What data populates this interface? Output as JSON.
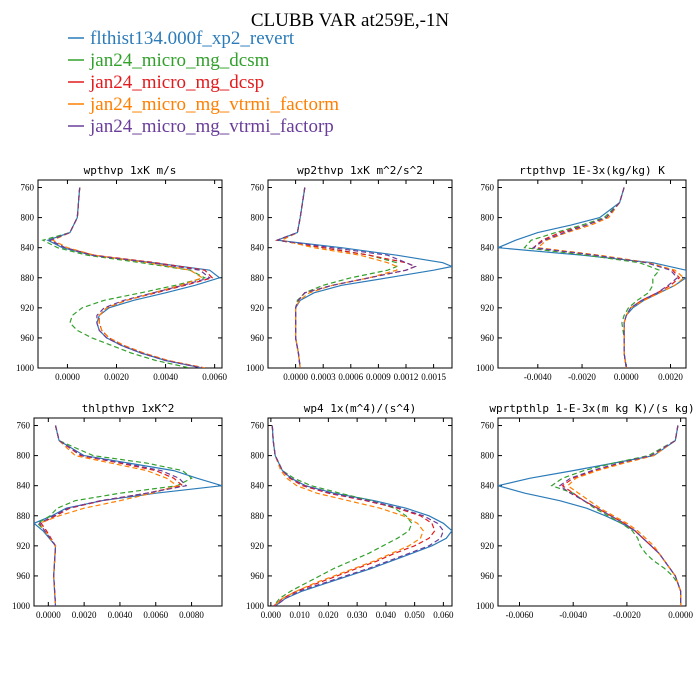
{
  "title": "CLUBB VAR at259E,-1N",
  "legend": [
    {
      "name": "flthist134.000f_xp2_revert",
      "color": "#2b7bb9",
      "dash": ""
    },
    {
      "name": "jan24_micro_mg_dcsm",
      "color": "#33a02c",
      "dash": "5,3"
    },
    {
      "name": "jan24_micro_mg_dcsp",
      "color": "#e31a1c",
      "dash": "5,3"
    },
    {
      "name": "jan24_micro_mg_vtrmi_factorm",
      "color": "#ff7f00",
      "dash": "5,3"
    },
    {
      "name": "jan24_micro_mg_vtrmi_factorp",
      "color": "#6a3d9a",
      "dash": "5,3"
    }
  ],
  "chart_data": [
    {
      "type": "line",
      "title": "wpthvp  1xK m/s",
      "ylim": [
        1000,
        750
      ],
      "yticks": [
        760,
        800,
        840,
        880,
        920,
        960,
        1000
      ],
      "xlim": [
        -0.0012,
        0.0063
      ],
      "xticks": [
        0,
        0.002,
        0.004,
        0.006
      ],
      "xticklabels": [
        "0.0000",
        "0.0020",
        "0.0040",
        "0.0060"
      ],
      "y": [
        760,
        800,
        820,
        830,
        840,
        850,
        860,
        870,
        880,
        890,
        900,
        910,
        920,
        930,
        940,
        950,
        960,
        970,
        980,
        990,
        1000
      ],
      "series": [
        {
          "values": [
            0.0005,
            0.0004,
            0.0001,
            -0.0008,
            -0.0002,
            0.001,
            0.0035,
            0.0058,
            0.0062,
            0.0052,
            0.004,
            0.0027,
            0.0017,
            0.0013,
            0.0012,
            0.0013,
            0.0016,
            0.0022,
            0.003,
            0.004,
            0.0055
          ]
        },
        {
          "values": [
            0.0005,
            0.0004,
            0.0001,
            -0.001,
            -0.0004,
            0.0008,
            0.003,
            0.005,
            0.0056,
            0.0044,
            0.003,
            0.0015,
            0.0006,
            0.0002,
            0.0001,
            0.0004,
            0.001,
            0.0018,
            0.0026,
            0.0036,
            0.005
          ]
        },
        {
          "values": [
            0.0005,
            0.0004,
            0.0001,
            -0.0007,
            -0.0001,
            0.0011,
            0.0036,
            0.0056,
            0.0059,
            0.0048,
            0.0036,
            0.0024,
            0.0016,
            0.0013,
            0.0013,
            0.0014,
            0.0017,
            0.0023,
            0.0031,
            0.0041,
            0.0056
          ]
        },
        {
          "values": [
            0.0005,
            0.0004,
            0.0001,
            -0.0006,
            0.0,
            0.0011,
            0.0033,
            0.005,
            0.0055,
            0.0046,
            0.0035,
            0.0024,
            0.0016,
            0.0013,
            0.0013,
            0.0014,
            0.0017,
            0.0023,
            0.0031,
            0.0041,
            0.0056
          ]
        },
        {
          "values": [
            0.0005,
            0.0004,
            0.0001,
            -0.0007,
            -0.0001,
            0.001,
            0.0034,
            0.0054,
            0.0058,
            0.0047,
            0.0035,
            0.0023,
            0.0015,
            0.0012,
            0.0012,
            0.0013,
            0.0016,
            0.0022,
            0.003,
            0.004,
            0.0055
          ]
        }
      ]
    },
    {
      "type": "line",
      "title": "wp2thvp  1xK m^2/s^2",
      "ylim": [
        1000,
        750
      ],
      "yticks": [
        760,
        800,
        840,
        880,
        920,
        960,
        1000
      ],
      "xlim": [
        -0.0003,
        0.0017
      ],
      "xticks": [
        0,
        0.0003,
        0.0006,
        0.0009,
        0.0012,
        0.0015
      ],
      "xticklabels": [
        "0.0000",
        "0.0003",
        "0.0006",
        "0.0009",
        "0.0012",
        "0.0015"
      ],
      "y": [
        760,
        800,
        820,
        830,
        840,
        850,
        860,
        865,
        870,
        880,
        890,
        900,
        910,
        920,
        940,
        960,
        980,
        1000
      ],
      "series": [
        {
          "values": [
            0.0001,
            5e-05,
            2e-05,
            -0.0002,
            0.0005,
            0.0011,
            0.0016,
            0.0017,
            0.0015,
            0.001,
            0.0005,
            0.0002,
            5e-05,
            0.0,
            0.0,
            0.0,
            3e-05,
            5e-05
          ]
        },
        {
          "values": [
            0.0001,
            5e-05,
            2e-05,
            -0.0002,
            0.0003,
            0.0008,
            0.0011,
            0.0011,
            0.001,
            0.0006,
            0.0003,
            0.0001,
            2e-05,
            0.0,
            0.0,
            0.0,
            3e-05,
            5e-05
          ]
        },
        {
          "values": [
            0.0001,
            5e-05,
            2e-05,
            -0.0002,
            0.0003,
            0.0008,
            0.0012,
            0.0013,
            0.0012,
            0.0008,
            0.0004,
            0.0001,
            3e-05,
            0.0,
            0.0,
            0.0,
            3e-05,
            5e-05
          ]
        },
        {
          "values": [
            0.0001,
            5e-05,
            2e-05,
            -0.00015,
            0.0002,
            0.0007,
            0.001,
            0.0011,
            0.0011,
            0.0008,
            0.0004,
            0.00015,
            4e-05,
            0.0,
            0.0,
            0.0,
            3e-05,
            5e-05
          ]
        },
        {
          "values": [
            0.0001,
            5e-05,
            2e-05,
            -0.0002,
            0.0004,
            0.001,
            0.0012,
            0.0013,
            0.0012,
            0.0008,
            0.0004,
            0.0001,
            3e-05,
            0.0,
            0.0,
            0.0,
            3e-05,
            5e-05
          ]
        }
      ]
    },
    {
      "type": "line",
      "title": "rtpthvp  1E-3x(kg/kg) K",
      "ylim": [
        1000,
        750
      ],
      "yticks": [
        760,
        800,
        840,
        880,
        920,
        960,
        1000
      ],
      "xlim": [
        -0.0058,
        0.0027
      ],
      "xticks": [
        -0.004,
        -0.002,
        0,
        0.002
      ],
      "xticklabels": [
        "-0.0040",
        "-0.0020",
        "0.0000",
        "0.0020"
      ],
      "y": [
        760,
        780,
        800,
        810,
        820,
        830,
        840,
        850,
        860,
        870,
        880,
        890,
        900,
        910,
        920,
        930,
        940,
        960,
        980,
        1000
      ],
      "series": [
        {
          "values": [
            -0.0001,
            -0.0003,
            -0.0012,
            -0.0025,
            -0.004,
            -0.005,
            -0.0058,
            -0.002,
            0.0012,
            0.0027,
            0.0027,
            0.0022,
            0.0015,
            0.0008,
            0.0003,
            0.0,
            -0.0001,
            -0.0001,
            -0.0001,
            0.0
          ]
        },
        {
          "values": [
            -0.0001,
            -0.0003,
            -0.001,
            -0.002,
            -0.0032,
            -0.0043,
            -0.0046,
            -0.0018,
            0.0006,
            0.0015,
            0.0012,
            0.0012,
            0.001,
            0.0005,
            0.0001,
            -0.0001,
            -0.0002,
            -0.0001,
            -0.0001,
            0.0
          ]
        },
        {
          "values": [
            -0.0001,
            -0.0003,
            -0.0009,
            -0.0018,
            -0.003,
            -0.0038,
            -0.0042,
            -0.0014,
            0.001,
            0.0021,
            0.0024,
            0.002,
            0.0014,
            0.0007,
            0.0002,
            0.0,
            -0.0001,
            -0.0001,
            -0.0001,
            0.0
          ]
        },
        {
          "values": [
            -0.0001,
            -0.0003,
            -0.0008,
            -0.0016,
            -0.0027,
            -0.0036,
            -0.004,
            -0.0012,
            0.001,
            0.0022,
            0.0026,
            0.0022,
            0.0015,
            0.0008,
            0.0002,
            0.0,
            -0.0001,
            -0.0001,
            -0.0001,
            0.0
          ]
        },
        {
          "values": [
            -0.0001,
            -0.0003,
            -0.0009,
            -0.0018,
            -0.0028,
            -0.0037,
            -0.0042,
            -0.0014,
            0.0009,
            0.002,
            0.0023,
            0.0019,
            0.0014,
            0.0007,
            0.0002,
            0.0,
            -0.0001,
            -0.0001,
            -0.0001,
            0.0
          ]
        }
      ]
    },
    {
      "type": "line",
      "title": "thlpthvp  1xK^2",
      "ylim": [
        1000,
        750
      ],
      "yticks": [
        760,
        800,
        840,
        880,
        920,
        960,
        1000
      ],
      "xlim": [
        -0.0008,
        0.0097
      ],
      "xticks": [
        0,
        0.002,
        0.004,
        0.006,
        0.008
      ],
      "xticklabels": [
        "0.0000",
        "0.0020",
        "0.0040",
        "0.0060",
        "0.0080"
      ],
      "y": [
        760,
        780,
        800,
        810,
        820,
        830,
        840,
        850,
        860,
        870,
        880,
        890,
        900,
        920,
        960,
        1000
      ],
      "series": [
        {
          "values": [
            0.0004,
            0.0006,
            0.002,
            0.0045,
            0.007,
            0.0083,
            0.0097,
            0.006,
            0.003,
            0.001,
            0.0002,
            -0.0008,
            -0.0003,
            0.0004,
            0.0003,
            0.0004
          ]
        },
        {
          "values": [
            0.0004,
            0.0006,
            0.0025,
            0.0055,
            0.0075,
            0.008,
            0.0072,
            0.004,
            0.0015,
            0.0005,
            0.0001,
            -0.0006,
            -0.0002,
            0.0004,
            0.0003,
            0.0004
          ]
        },
        {
          "values": [
            0.0004,
            0.0006,
            0.0018,
            0.004,
            0.006,
            0.007,
            0.0075,
            0.0055,
            0.003,
            0.0012,
            0.0004,
            -0.0004,
            -0.0001,
            0.0004,
            0.0003,
            0.0004
          ]
        },
        {
          "values": [
            0.0004,
            0.0006,
            0.0015,
            0.0035,
            0.0055,
            0.0066,
            0.0072,
            0.0058,
            0.004,
            0.002,
            0.0006,
            -0.0005,
            -0.0002,
            0.0004,
            0.0003,
            0.0004
          ]
        },
        {
          "values": [
            0.0004,
            0.0006,
            0.0019,
            0.0042,
            0.0063,
            0.0073,
            0.0077,
            0.0055,
            0.0029,
            0.0011,
            0.0003,
            -0.0005,
            -0.0002,
            0.0004,
            0.0003,
            0.0004
          ]
        }
      ]
    },
    {
      "type": "line",
      "title": "wp4  1x(m^4)/(s^4)",
      "ylim": [
        1000,
        750
      ],
      "yticks": [
        760,
        800,
        840,
        880,
        920,
        960,
        1000
      ],
      "xlim": [
        -0.001,
        0.063
      ],
      "xticks": [
        0,
        0.01,
        0.02,
        0.03,
        0.04,
        0.05,
        0.06
      ],
      "xticklabels": [
        "0.000",
        "0.010",
        "0.020",
        "0.030",
        "0.040",
        "0.050",
        "0.060"
      ],
      "y": [
        760,
        780,
        800,
        820,
        830,
        840,
        850,
        860,
        870,
        880,
        890,
        900,
        910,
        920,
        930,
        940,
        950,
        960,
        970,
        980,
        990,
        1000
      ],
      "series": [
        {
          "values": [
            0.0005,
            0.0008,
            0.0015,
            0.004,
            0.007,
            0.012,
            0.022,
            0.036,
            0.047,
            0.055,
            0.06,
            0.063,
            0.061,
            0.056,
            0.049,
            0.042,
            0.035,
            0.027,
            0.019,
            0.011,
            0.005,
            0.0015
          ]
        },
        {
          "values": [
            0.0005,
            0.0008,
            0.0015,
            0.004,
            0.008,
            0.014,
            0.024,
            0.035,
            0.043,
            0.047,
            0.049,
            0.048,
            0.044,
            0.039,
            0.034,
            0.028,
            0.022,
            0.017,
            0.012,
            0.007,
            0.003,
            0.001
          ]
        },
        {
          "values": [
            0.0005,
            0.0008,
            0.0015,
            0.004,
            0.0065,
            0.011,
            0.02,
            0.033,
            0.044,
            0.052,
            0.056,
            0.057,
            0.055,
            0.05,
            0.043,
            0.037,
            0.03,
            0.023,
            0.016,
            0.009,
            0.004,
            0.001
          ]
        },
        {
          "values": [
            0.0005,
            0.0008,
            0.0015,
            0.0035,
            0.0055,
            0.009,
            0.016,
            0.027,
            0.038,
            0.046,
            0.051,
            0.053,
            0.052,
            0.048,
            0.042,
            0.036,
            0.029,
            0.022,
            0.015,
            0.009,
            0.004,
            0.001
          ]
        },
        {
          "values": [
            0.0005,
            0.0008,
            0.0015,
            0.004,
            0.007,
            0.012,
            0.021,
            0.034,
            0.045,
            0.053,
            0.058,
            0.06,
            0.059,
            0.055,
            0.048,
            0.041,
            0.034,
            0.026,
            0.018,
            0.01,
            0.005,
            0.0015
          ]
        }
      ]
    },
    {
      "type": "line",
      "title": "wprtpthlp  1-E-3x(m kg K)/(s kg)",
      "ylim": [
        1000,
        750
      ],
      "yticks": [
        760,
        800,
        840,
        880,
        920,
        960,
        1000
      ],
      "xlim": [
        -0.0068,
        0.0002
      ],
      "xticks": [
        -0.006,
        -0.004,
        -0.002,
        0
      ],
      "xticklabels": [
        "-0.0060",
        "-0.0040",
        "-0.0020",
        "0.0000"
      ],
      "y": [
        760,
        780,
        800,
        810,
        820,
        830,
        840,
        850,
        860,
        870,
        880,
        890,
        900,
        910,
        920,
        930,
        940,
        950,
        960,
        970,
        980,
        990,
        1000
      ],
      "series": [
        {
          "values": [
            -0.0001,
            -0.0002,
            -0.001,
            -0.0025,
            -0.004,
            -0.0056,
            -0.0068,
            -0.0058,
            -0.0045,
            -0.0035,
            -0.0028,
            -0.0022,
            -0.0017,
            -0.0014,
            -0.0011,
            -0.0008,
            -0.0006,
            -0.0004,
            -0.0002,
            -0.0001,
            0.0,
            0.0,
            0.0
          ]
        },
        {
          "values": [
            -0.0001,
            -0.0002,
            -0.0012,
            -0.0025,
            -0.0036,
            -0.0044,
            -0.0048,
            -0.004,
            -0.0036,
            -0.0032,
            -0.0027,
            -0.0022,
            -0.0018,
            -0.0016,
            -0.0015,
            -0.0013,
            -0.001,
            -0.0006,
            -0.0003,
            -0.0001,
            0.0,
            0.0,
            0.0
          ]
        },
        {
          "values": [
            -0.0001,
            -0.0002,
            -0.0011,
            -0.0022,
            -0.0032,
            -0.004,
            -0.0044,
            -0.004,
            -0.0036,
            -0.0031,
            -0.0026,
            -0.0021,
            -0.0017,
            -0.0014,
            -0.0011,
            -0.0008,
            -0.0006,
            -0.0004,
            -0.0002,
            -0.0001,
            0.0,
            0.0,
            0.0
          ]
        },
        {
          "values": [
            -0.0001,
            -0.0002,
            -0.001,
            -0.0021,
            -0.0031,
            -0.0039,
            -0.0042,
            -0.0038,
            -0.0034,
            -0.003,
            -0.0025,
            -0.002,
            -0.0016,
            -0.0013,
            -0.001,
            -0.0008,
            -0.0006,
            -0.0004,
            -0.0002,
            -0.0001,
            0.0,
            0.0,
            0.0
          ]
        },
        {
          "values": [
            -0.0001,
            -0.0002,
            -0.0011,
            -0.0023,
            -0.0033,
            -0.0041,
            -0.0045,
            -0.0041,
            -0.0036,
            -0.0031,
            -0.0026,
            -0.0021,
            -0.0017,
            -0.0014,
            -0.0011,
            -0.0008,
            -0.0006,
            -0.0004,
            -0.0002,
            -0.0001,
            0.0,
            0.0,
            0.0
          ]
        }
      ]
    }
  ]
}
